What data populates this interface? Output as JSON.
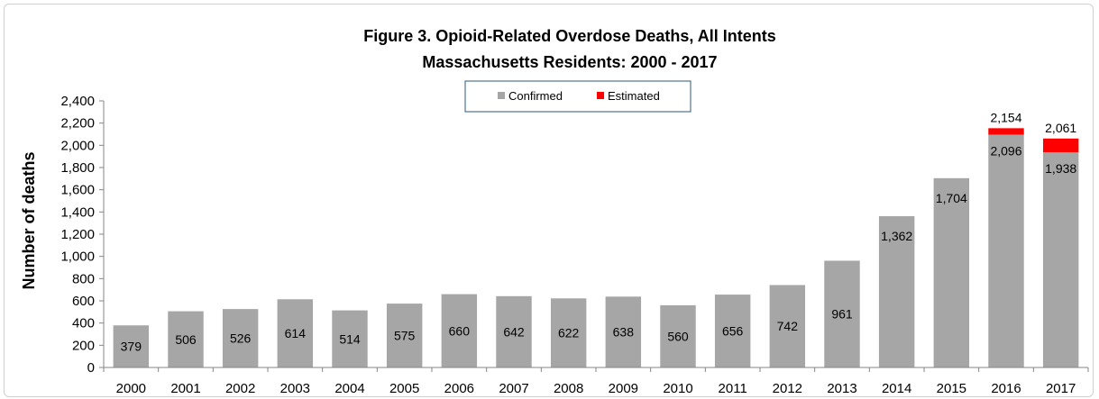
{
  "chart_data": {
    "type": "bar",
    "title": "Figure 3. Opioid-Related Overdose Deaths, All Intents",
    "subtitle": "Massachusetts Residents: 2000 - 2017",
    "ylabel": "Number of deaths",
    "xlabel": "",
    "ylim": [
      0,
      2400
    ],
    "y_ticks": [
      "0",
      "200",
      "400",
      "600",
      "800",
      "1,000",
      "1,200",
      "1,400",
      "1,600",
      "1,800",
      "2,000",
      "2,200",
      "2,400"
    ],
    "y_tick_values": [
      0,
      200,
      400,
      600,
      800,
      1000,
      1200,
      1400,
      1600,
      1800,
      2000,
      2200,
      2400
    ],
    "stacked": true,
    "grid": false,
    "legend_position": "top-center",
    "categories": [
      "2000",
      "2001",
      "2002",
      "2003",
      "2004",
      "2005",
      "2006",
      "2007",
      "2008",
      "2009",
      "2010",
      "2011",
      "2012",
      "2013",
      "2014",
      "2015",
      "2016",
      "2017"
    ],
    "series": [
      {
        "name": "Confirmed",
        "color": "#a6a6a6",
        "values": [
          379,
          506,
          526,
          614,
          514,
          575,
          660,
          642,
          622,
          638,
          560,
          656,
          742,
          961,
          1362,
          1704,
          2096,
          1938
        ],
        "labels": [
          "379",
          "506",
          "526",
          "614",
          "514",
          "575",
          "660",
          "642",
          "622",
          "638",
          "560",
          "656",
          "742",
          "961",
          "1,362",
          "1,704",
          "2,096",
          "1,938"
        ]
      },
      {
        "name": "Estimated",
        "color": "#ff0000",
        "values": [
          0,
          0,
          0,
          0,
          0,
          0,
          0,
          0,
          0,
          0,
          0,
          0,
          0,
          0,
          0,
          0,
          58,
          123
        ]
      }
    ],
    "total_labels": [
      "",
      "",
      "",
      "",
      "",
      "",
      "",
      "",
      "",
      "",
      "",
      "",
      "",
      "",
      "",
      "",
      "2,154",
      "2,061"
    ]
  }
}
